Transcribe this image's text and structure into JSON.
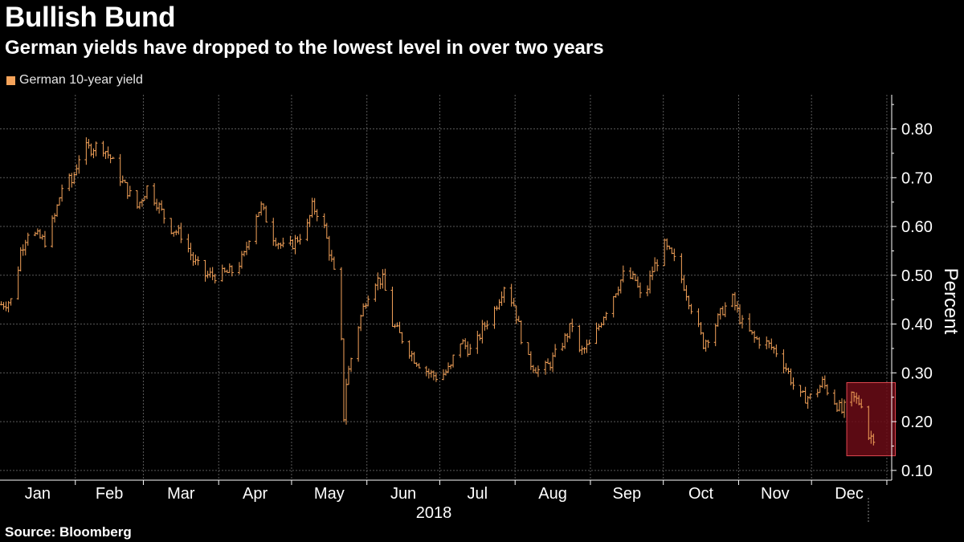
{
  "header": {
    "title": "Bullish Bund",
    "subtitle": "German yields have dropped to the lowest level in over two years"
  },
  "legend": {
    "label": "German 10-year yield"
  },
  "footer": {
    "source": "Source: Bloomberg"
  },
  "colors": {
    "series": "#f5a35a",
    "highlight_fill": "#6b0c16",
    "highlight_stroke": "#e0474f",
    "grid": "#5a5a5a"
  },
  "chart_data": {
    "type": "ohlc",
    "title": "Bullish Bund",
    "subtitle": "German yields have dropped to the lowest level in over two years",
    "ylabel": "Percent",
    "xlabel": "2018",
    "ylim": [
      0.08,
      0.87
    ],
    "yticks": [
      0.1,
      0.2,
      0.3,
      0.4,
      0.5,
      0.6,
      0.7,
      0.8
    ],
    "ytick_labels": [
      "0.10",
      "0.20",
      "0.30",
      "0.40",
      "0.50",
      "0.60",
      "0.70",
      "0.80"
    ],
    "months": [
      "Jan",
      "Feb",
      "Mar",
      "Apr",
      "May",
      "Jun",
      "Jul",
      "Aug",
      "Sep",
      "Oct",
      "Nov",
      "Dec"
    ],
    "year_label": "2018",
    "series_name": "German 10-year yield",
    "highlight": {
      "start_day": 348,
      "end_day": 368,
      "low": 0.13,
      "high": 0.28
    },
    "anchors": [
      {
        "day": 0,
        "close": 0.44
      },
      {
        "day": 5,
        "close": 0.45
      },
      {
        "day": 8,
        "close": 0.55
      },
      {
        "day": 11,
        "close": 0.59
      },
      {
        "day": 18,
        "close": 0.57
      },
      {
        "day": 22,
        "close": 0.62
      },
      {
        "day": 26,
        "close": 0.7
      },
      {
        "day": 29,
        "close": 0.69
      },
      {
        "day": 33,
        "close": 0.76
      },
      {
        "day": 37,
        "close": 0.76
      },
      {
        "day": 41,
        "close": 0.77
      },
      {
        "day": 45,
        "close": 0.74
      },
      {
        "day": 50,
        "close": 0.69
      },
      {
        "day": 56,
        "close": 0.64
      },
      {
        "day": 60,
        "close": 0.68
      },
      {
        "day": 64,
        "close": 0.65
      },
      {
        "day": 69,
        "close": 0.6
      },
      {
        "day": 75,
        "close": 0.58
      },
      {
        "day": 79,
        "close": 0.53
      },
      {
        "day": 84,
        "close": 0.5
      },
      {
        "day": 90,
        "close": 0.5
      },
      {
        "day": 96,
        "close": 0.51
      },
      {
        "day": 100,
        "close": 0.54
      },
      {
        "day": 104,
        "close": 0.62
      },
      {
        "day": 107,
        "close": 0.64
      },
      {
        "day": 112,
        "close": 0.58
      },
      {
        "day": 117,
        "close": 0.55
      },
      {
        "day": 121,
        "close": 0.57
      },
      {
        "day": 126,
        "close": 0.6
      },
      {
        "day": 128,
        "close": 0.64
      },
      {
        "day": 132,
        "close": 0.62
      },
      {
        "day": 135,
        "close": 0.55
      },
      {
        "day": 138,
        "close": 0.48
      },
      {
        "day": 140,
        "close": 0.36
      },
      {
        "day": 141,
        "close": 0.21
      },
      {
        "day": 142,
        "close": 0.28
      },
      {
        "day": 146,
        "close": 0.38
      },
      {
        "day": 150,
        "close": 0.45
      },
      {
        "day": 153,
        "close": 0.49
      },
      {
        "day": 157,
        "close": 0.49
      },
      {
        "day": 161,
        "close": 0.4
      },
      {
        "day": 165,
        "close": 0.37
      },
      {
        "day": 170,
        "close": 0.33
      },
      {
        "day": 176,
        "close": 0.3
      },
      {
        "day": 180,
        "close": 0.29
      },
      {
        "day": 185,
        "close": 0.31
      },
      {
        "day": 188,
        "close": 0.37
      },
      {
        "day": 194,
        "close": 0.34
      },
      {
        "day": 198,
        "close": 0.39
      },
      {
        "day": 203,
        "close": 0.43
      },
      {
        "day": 207,
        "close": 0.48
      },
      {
        "day": 211,
        "close": 0.44
      },
      {
        "day": 216,
        "close": 0.33
      },
      {
        "day": 222,
        "close": 0.3
      },
      {
        "day": 226,
        "close": 0.32
      },
      {
        "day": 232,
        "close": 0.37
      },
      {
        "day": 235,
        "close": 0.4
      },
      {
        "day": 238,
        "close": 0.34
      },
      {
        "day": 243,
        "close": 0.36
      },
      {
        "day": 248,
        "close": 0.42
      },
      {
        "day": 252,
        "close": 0.46
      },
      {
        "day": 256,
        "close": 0.5
      },
      {
        "day": 261,
        "close": 0.49
      },
      {
        "day": 264,
        "close": 0.44
      },
      {
        "day": 268,
        "close": 0.51
      },
      {
        "day": 273,
        "close": 0.56
      },
      {
        "day": 277,
        "close": 0.53
      },
      {
        "day": 281,
        "close": 0.48
      },
      {
        "day": 285,
        "close": 0.42
      },
      {
        "day": 289,
        "close": 0.36
      },
      {
        "day": 293,
        "close": 0.39
      },
      {
        "day": 297,
        "close": 0.43
      },
      {
        "day": 301,
        "close": 0.45
      },
      {
        "day": 305,
        "close": 0.4
      },
      {
        "day": 310,
        "close": 0.37
      },
      {
        "day": 315,
        "close": 0.36
      },
      {
        "day": 320,
        "close": 0.34
      },
      {
        "day": 324,
        "close": 0.3
      },
      {
        "day": 328,
        "close": 0.25
      },
      {
        "day": 334,
        "close": 0.25
      },
      {
        "day": 338,
        "close": 0.28
      },
      {
        "day": 342,
        "close": 0.25
      },
      {
        "day": 346,
        "close": 0.22
      },
      {
        "day": 350,
        "close": 0.25
      },
      {
        "day": 353,
        "close": 0.24
      },
      {
        "day": 355,
        "close": 0.24
      },
      {
        "day": 357,
        "close": 0.17
      },
      {
        "day": 359,
        "close": 0.17
      }
    ]
  }
}
